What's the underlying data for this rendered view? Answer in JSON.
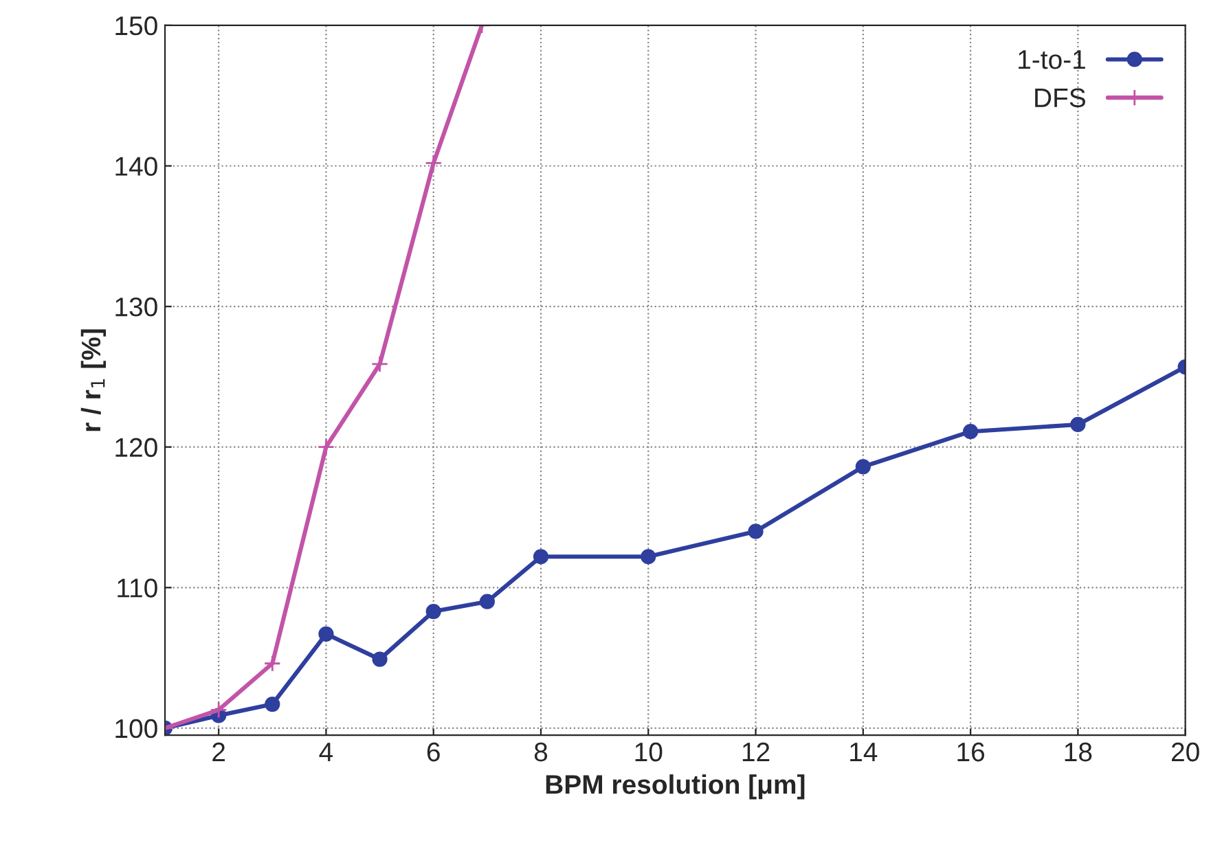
{
  "chart_data": {
    "type": "line",
    "xlabel": "BPM resolution [μm]",
    "ylabel": "r / r$_{1}$ [%]",
    "x": [
      1,
      2,
      3,
      4,
      5,
      6,
      7,
      8,
      10,
      12,
      14,
      16,
      18,
      20
    ],
    "series": [
      {
        "name": "1-to-1",
        "color": "#2e3f9e",
        "marker": "circle",
        "values": [
          100,
          100.9,
          101.7,
          106.7,
          104.9,
          108.3,
          109.0,
          112.2,
          112.2,
          114.0,
          118.6,
          121.1,
          121.6,
          125.7
        ]
      },
      {
        "name": "DFS",
        "color": "#c254a8",
        "marker": "cross",
        "x": [
          1,
          2,
          3,
          4,
          5,
          6,
          6.9
        ],
        "values": [
          100,
          101.3,
          104.6,
          120.0,
          125.9,
          140.2,
          150
        ]
      }
    ],
    "xlim": [
      1,
      20
    ],
    "ylim": [
      99.5,
      150
    ],
    "xticks": [
      2,
      4,
      6,
      8,
      10,
      12,
      14,
      16,
      18,
      20
    ],
    "yticks": [
      100,
      110,
      120,
      130,
      140,
      150
    ],
    "grid": true,
    "legend": "top right",
    "line_style": "solid"
  }
}
